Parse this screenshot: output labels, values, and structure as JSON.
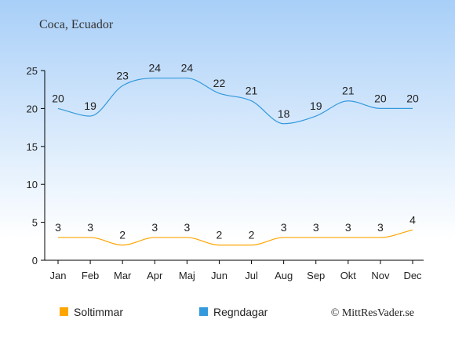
{
  "chart_data": {
    "type": "line",
    "title": "Coca, Ecuador",
    "categories": [
      "Jan",
      "Feb",
      "Mar",
      "Apr",
      "Maj",
      "Jun",
      "Jul",
      "Aug",
      "Sep",
      "Okt",
      "Nov",
      "Dec"
    ],
    "series": [
      {
        "name": "Soltimmar",
        "color": "#ffa500",
        "values": [
          3,
          3,
          2,
          3,
          3,
          2,
          2,
          3,
          3,
          3,
          3,
          4
        ]
      },
      {
        "name": "Regndagar",
        "color": "#3399dd",
        "values": [
          20,
          19,
          23,
          24,
          24,
          22,
          21,
          18,
          19,
          21,
          20,
          20
        ]
      }
    ],
    "yticks": [
      0,
      5,
      10,
      15,
      20,
      25
    ],
    "ylim": [
      0,
      25
    ],
    "xlabel": "",
    "ylabel": "",
    "grid": false,
    "legend": "bottom-left"
  },
  "credit": "© MittResVader.se",
  "background": {
    "top": "#a8cff8",
    "bottom": "#ffffff"
  }
}
